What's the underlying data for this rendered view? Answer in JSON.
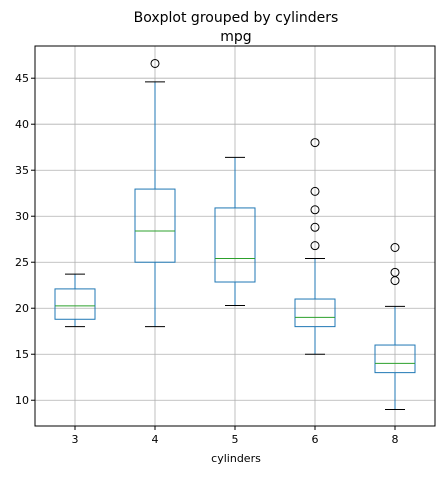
{
  "chart_data": {
    "type": "boxplot",
    "title": "Boxplot grouped by cylinders",
    "subtitle": "mpg",
    "xlabel": "cylinders",
    "ylabel": "",
    "categories": [
      "3",
      "4",
      "5",
      "6",
      "8"
    ],
    "ylim": [
      7.2,
      48.5
    ],
    "yticks": [
      10,
      15,
      20,
      25,
      30,
      35,
      40,
      45
    ],
    "grid": true,
    "boxes": [
      {
        "category": "3",
        "whisker_low": 18.0,
        "q1": 18.8,
        "median": 20.25,
        "q3": 22.1,
        "whisker_high": 23.7,
        "outliers": []
      },
      {
        "category": "4",
        "whisker_low": 18.0,
        "q1": 25.0,
        "median": 28.4,
        "q3": 32.95,
        "whisker_high": 44.6,
        "outliers": [
          46.6
        ]
      },
      {
        "category": "5",
        "whisker_low": 20.3,
        "q1": 22.85,
        "median": 25.4,
        "q3": 30.9,
        "whisker_high": 36.4,
        "outliers": []
      },
      {
        "category": "6",
        "whisker_low": 15.0,
        "q1": 18.0,
        "median": 19.0,
        "q3": 21.0,
        "whisker_high": 25.4,
        "outliers": [
          26.8,
          28.8,
          30.7,
          32.7,
          38.0
        ]
      },
      {
        "category": "8",
        "whisker_low": 9.0,
        "q1": 13.0,
        "median": 14.0,
        "q3": 16.0,
        "whisker_high": 20.2,
        "outliers": [
          23.0,
          23.9,
          26.6
        ]
      }
    ],
    "colors": {
      "box": "#1f77b4",
      "median": "#2ca02c",
      "whisker_cap": "#000000",
      "outlier": "#000000",
      "grid": "#b0b0b0",
      "spine": "#000000"
    }
  }
}
